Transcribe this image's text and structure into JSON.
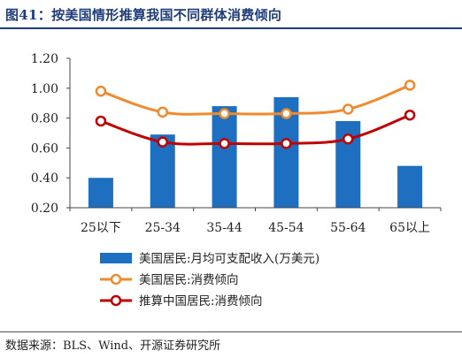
{
  "figure": {
    "title": "图41：按美国情形推算我国不同群体消费倾向",
    "source": "数据来源：BLS、Wind、开源证券研究所"
  },
  "colors": {
    "bar": "#1f6fc0",
    "us_line": "#ef8a2e",
    "cn_line": "#c00000",
    "title": "#1f3d7a"
  },
  "chart_data": {
    "type": "bar",
    "categories": [
      "25以下",
      "25-34",
      "35-44",
      "45-54",
      "55-64",
      "65以上"
    ],
    "series": [
      {
        "name": "美国居民:月均可支配收入(万美元)",
        "type": "bar",
        "values": [
          0.4,
          0.69,
          0.88,
          0.94,
          0.78,
          0.48
        ]
      },
      {
        "name": "美国居民:消费倾向",
        "type": "line",
        "values": [
          0.98,
          0.84,
          0.83,
          0.83,
          0.86,
          1.02
        ]
      },
      {
        "name": "推算中国居民:消费倾向",
        "type": "line",
        "values": [
          0.78,
          0.64,
          0.63,
          0.63,
          0.66,
          0.82
        ]
      }
    ],
    "yticks": [
      "0.20",
      "0.40",
      "0.60",
      "0.80",
      "1.00",
      "1.20"
    ],
    "ylim": [
      0.2,
      1.2
    ],
    "grid": false,
    "legend_position": "bottom"
  }
}
